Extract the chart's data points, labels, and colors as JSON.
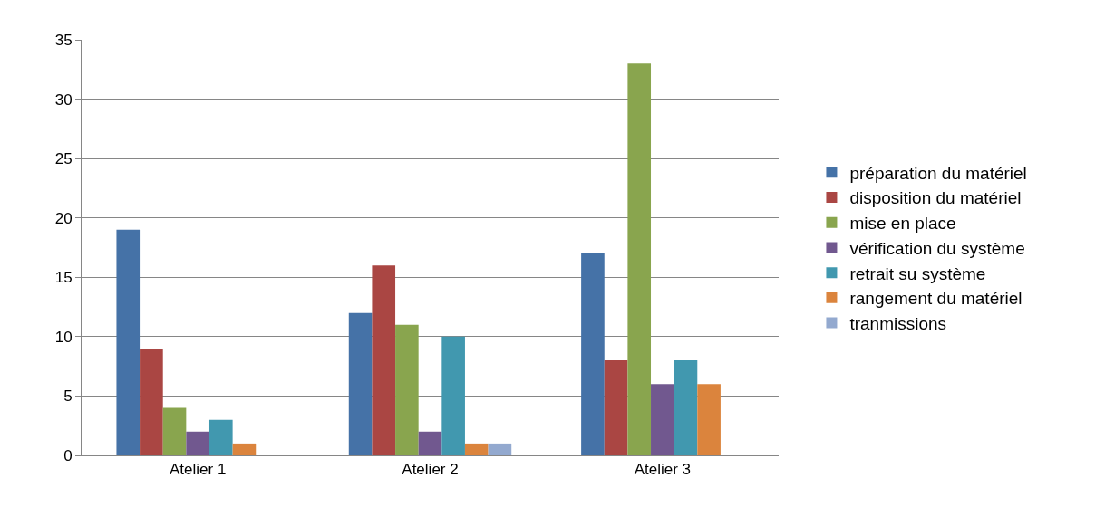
{
  "chart_data": {
    "type": "bar",
    "categories": [
      "Atelier 1",
      "Atelier 2",
      "Atelier 3"
    ],
    "series": [
      {
        "name": "préparation du matériel",
        "color": "#4572a7",
        "values": [
          19,
          12,
          17
        ]
      },
      {
        "name": "disposition du matériel",
        "color": "#aa4643",
        "values": [
          9,
          16,
          8
        ]
      },
      {
        "name": "mise en place",
        "color": "#89a54e",
        "values": [
          4,
          11,
          33
        ]
      },
      {
        "name": "vérification du système",
        "color": "#71588f",
        "values": [
          2,
          2,
          6
        ]
      },
      {
        "name": "retrait su système",
        "color": "#4198af",
        "values": [
          3,
          10,
          8
        ]
      },
      {
        "name": "rangement du matériel",
        "color": "#db843d",
        "values": [
          1,
          1,
          6
        ]
      },
      {
        "name": "tranmissions",
        "color": "#93a9cf",
        "values": [
          null,
          1,
          null
        ]
      }
    ],
    "ylim": [
      0,
      35
    ],
    "yticks": [
      0,
      5,
      10,
      15,
      20,
      25,
      30,
      35
    ],
    "grid": "y",
    "legend": "right"
  }
}
